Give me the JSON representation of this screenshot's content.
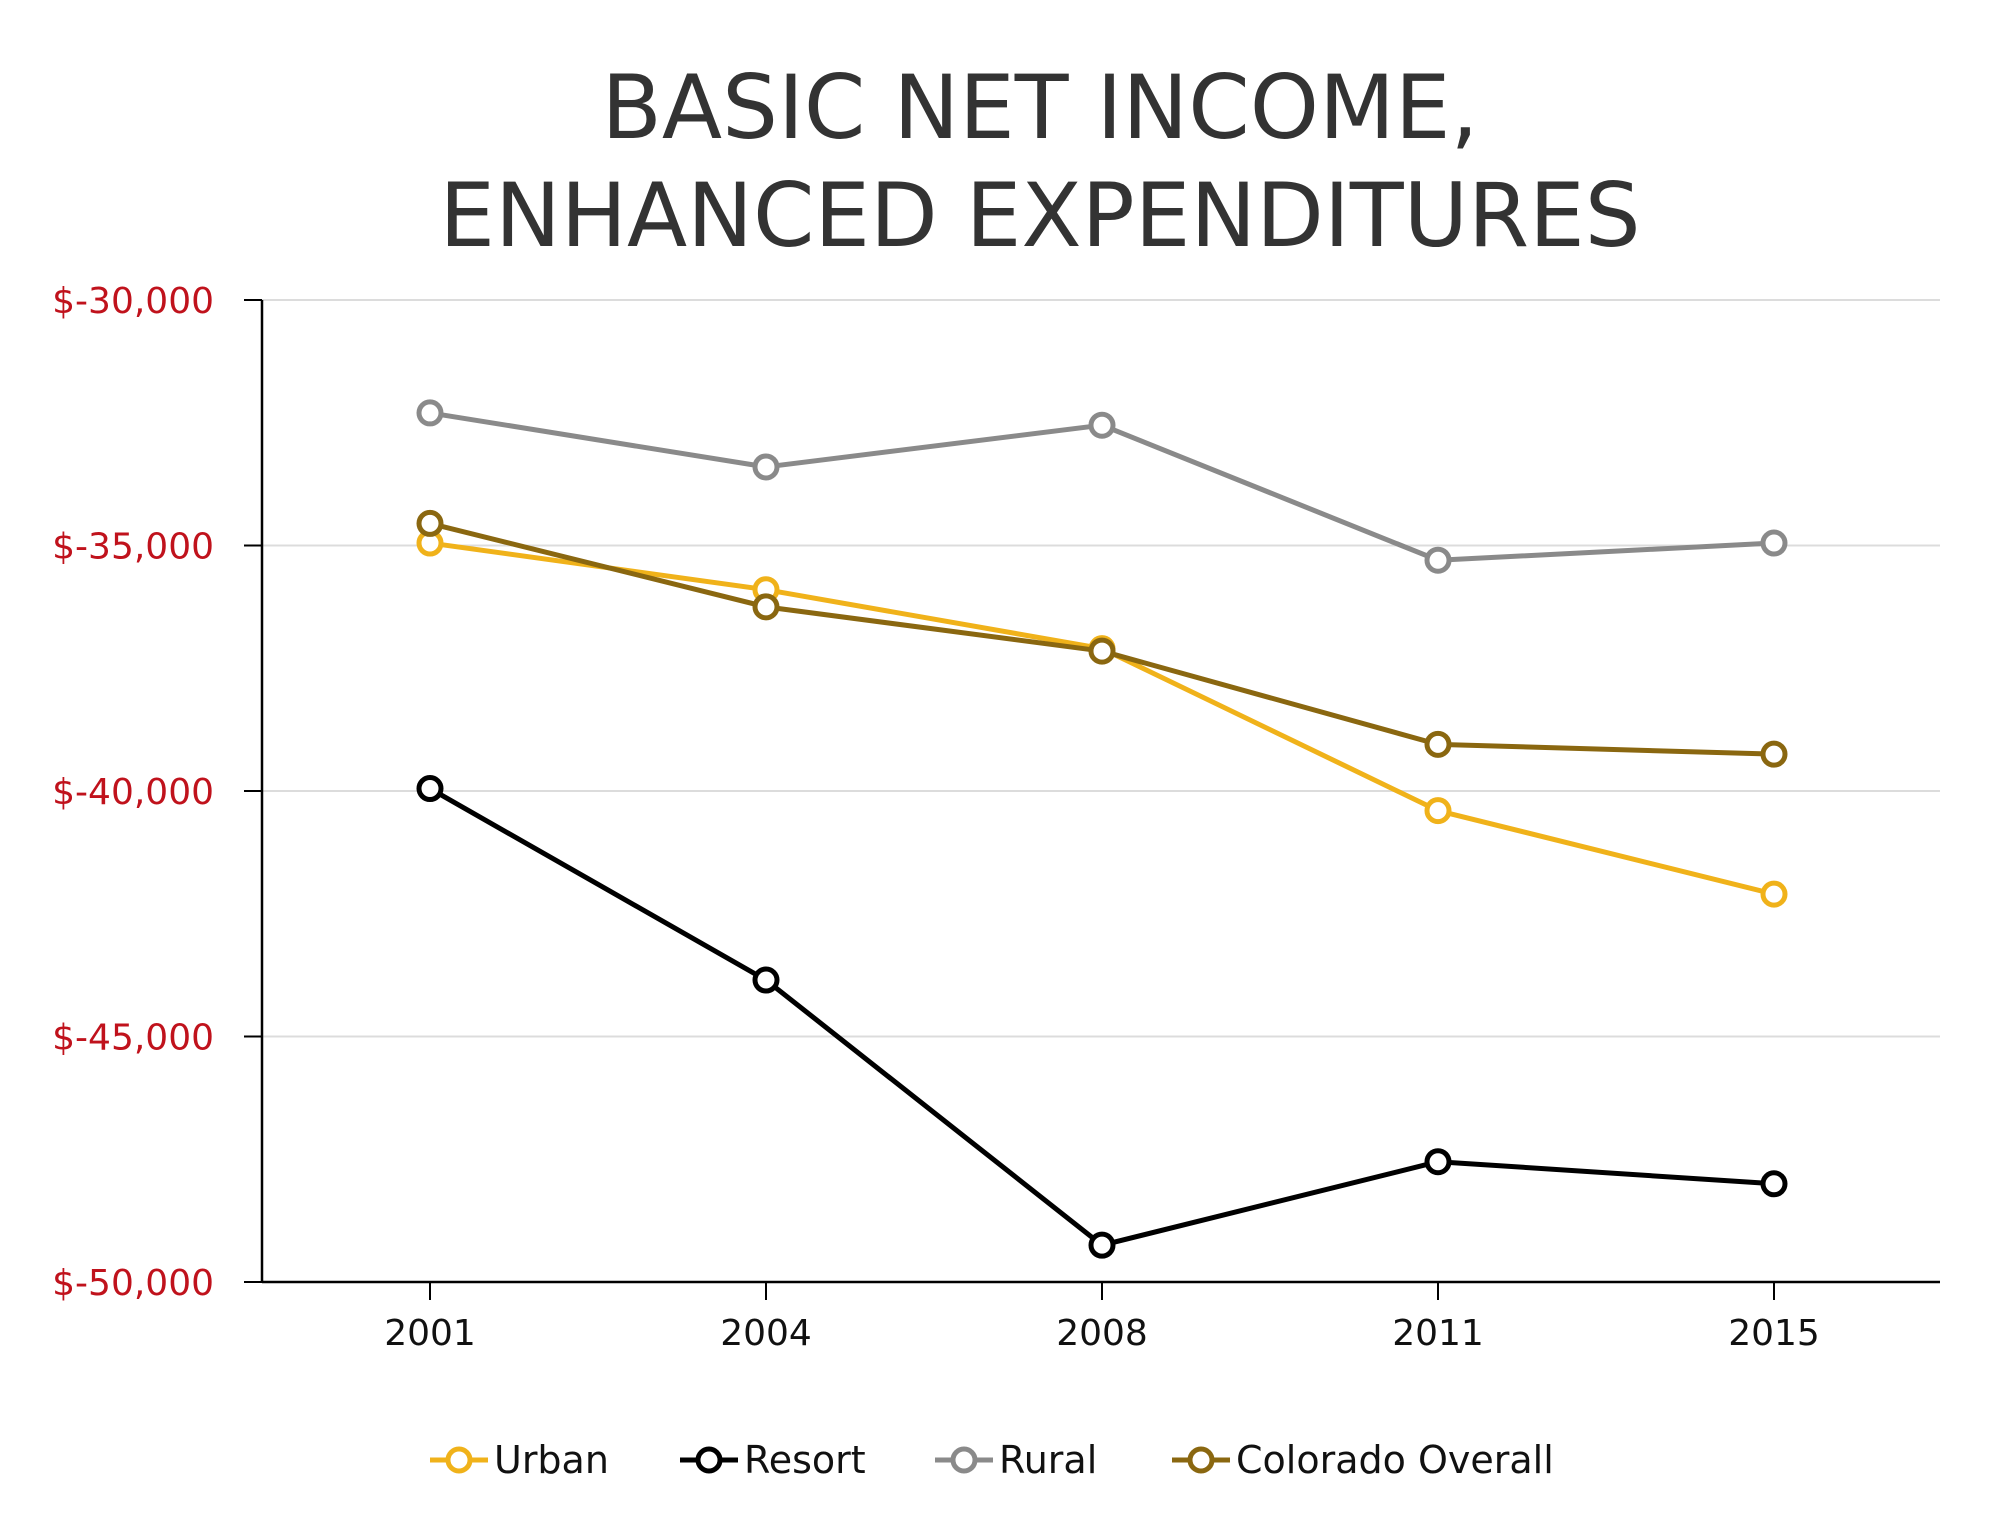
{
  "chart_data": {
    "type": "line",
    "title_lines": [
      "BASIC NET INCOME,",
      "ENHANCED EXPENDITURES"
    ],
    "categories": [
      "2001",
      "2004",
      "2008",
      "2011",
      "2015"
    ],
    "y_ticks": [
      -30000,
      -35000,
      -40000,
      -45000,
      -50000
    ],
    "y_tick_labels": [
      "$-30,000",
      "$-35,000",
      "$-40,000",
      "$-45,000",
      "$-50,000"
    ],
    "ylim": [
      -50000,
      -30000
    ],
    "grid": "horizontal",
    "legend_position": "bottom",
    "tick_label_color": "#c0121c",
    "series": [
      {
        "name": "Urban",
        "color": "#f0b21a",
        "values": [
          -34950,
          -35900,
          -37100,
          -40400,
          -42100
        ]
      },
      {
        "name": "Resort",
        "color": "#000000",
        "values": [
          -39950,
          -43850,
          -49250,
          -47550,
          -48000
        ]
      },
      {
        "name": "Rural",
        "color": "#8a8a8a",
        "values": [
          -32300,
          -33400,
          -32550,
          -35300,
          -34950
        ]
      },
      {
        "name": "Colorado Overall",
        "color": "#8a6710",
        "values": [
          -34550,
          -36250,
          -37150,
          -39050,
          -39250
        ]
      }
    ]
  }
}
